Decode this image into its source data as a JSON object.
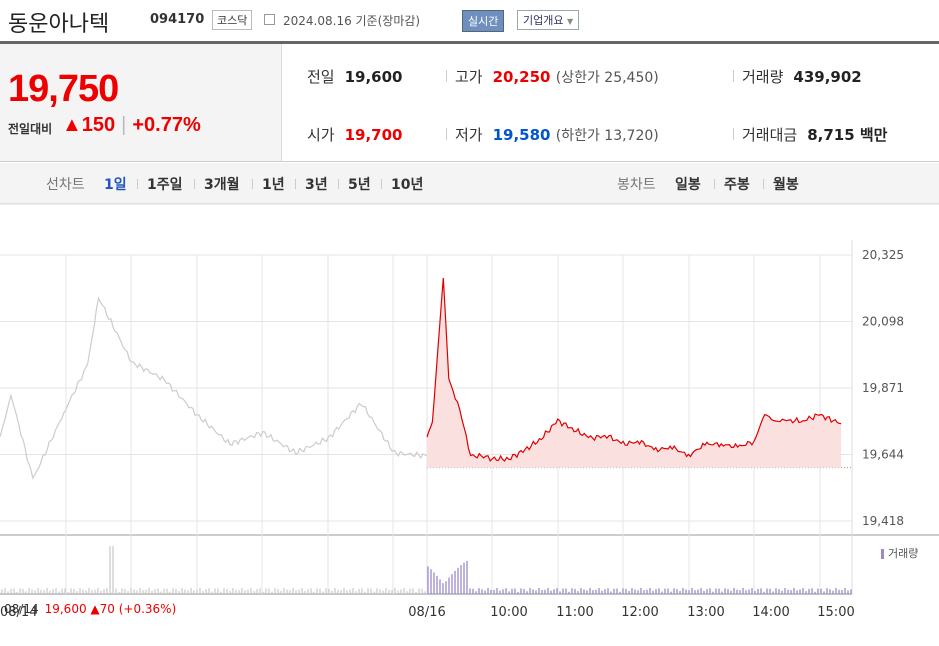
{
  "header": {
    "company": "동운아나텍",
    "code": "094170",
    "market": "코스닥",
    "date": "2024.08.16 기준(장마감)",
    "realtime_label": "실시간",
    "company_info_label": "기업개요"
  },
  "quote": {
    "price": "19,750",
    "change_label": "전일대비",
    "change_arrow": "▲",
    "change": "150",
    "change_pct": "+0.77%",
    "prev_label": "전일",
    "prev": "19,600",
    "high_label": "고가",
    "high": "20,250",
    "upper_limit": "(상한가 25,450)",
    "volume_label": "거래량",
    "volume": "439,902",
    "open_label": "시가",
    "open": "19,700",
    "low_label": "저가",
    "low": "19,580",
    "lower_limit": "(하한가 13,720)",
    "amount_label": "거래대금",
    "amount": "8,715 백만"
  },
  "tabs": {
    "line_label": "선차트",
    "line_periods": [
      "1일",
      "1주일",
      "3개월",
      "1년",
      "3년",
      "5년",
      "10년"
    ],
    "active": "1일",
    "candle_label": "봉차트",
    "candle_periods": [
      "일봉",
      "주봉",
      "월봉"
    ]
  },
  "chart_data": {
    "type": "line",
    "title": "",
    "y_ticks": [
      "20,325",
      "20,098",
      "19,871",
      "19,644",
      "19,418"
    ],
    "ylim": [
      19418,
      20325
    ],
    "x_ticks": [
      "08/16",
      "10:00",
      "11:00",
      "12:00",
      "13:00",
      "14:00",
      "15:00"
    ],
    "baseline": 19600,
    "series": [
      {
        "date": "08/14",
        "color": "#cccccc",
        "x": [
          "09:00",
          "09:10",
          "09:30",
          "10:00",
          "10:20",
          "10:30",
          "11:00",
          "11:30",
          "12:00",
          "12:30",
          "13:00",
          "13:30",
          "14:00",
          "14:30",
          "15:00",
          "15:30"
        ],
        "values": [
          19700,
          19850,
          19560,
          19800,
          19950,
          20180,
          19960,
          19900,
          19780,
          19680,
          19720,
          19650,
          19700,
          19820,
          19650,
          19640
        ]
      },
      {
        "date": "08/16",
        "color": "#e00000",
        "x": [
          "09:00",
          "09:05",
          "09:10",
          "09:15",
          "09:20",
          "09:30",
          "09:40",
          "09:50",
          "10:00",
          "10:15",
          "10:30",
          "10:45",
          "11:00",
          "11:15",
          "11:30",
          "11:45",
          "12:00",
          "12:15",
          "12:30",
          "12:45",
          "13:00",
          "13:15",
          "13:30",
          "13:45",
          "14:00",
          "14:10",
          "14:20",
          "14:30",
          "14:45",
          "15:00",
          "15:20"
        ],
        "values": [
          19700,
          19760,
          20000,
          20250,
          19900,
          19800,
          19640,
          19640,
          19630,
          19630,
          19660,
          19700,
          19760,
          19730,
          19700,
          19710,
          19680,
          19690,
          19660,
          19670,
          19640,
          19680,
          19680,
          19670,
          19690,
          19780,
          19760,
          19760,
          19760,
          19780,
          19750
        ]
      }
    ],
    "volume_label": "거래량"
  },
  "prev_summary": {
    "date": "08/14",
    "text": "19,600 ▲70 (+0.36%)"
  }
}
